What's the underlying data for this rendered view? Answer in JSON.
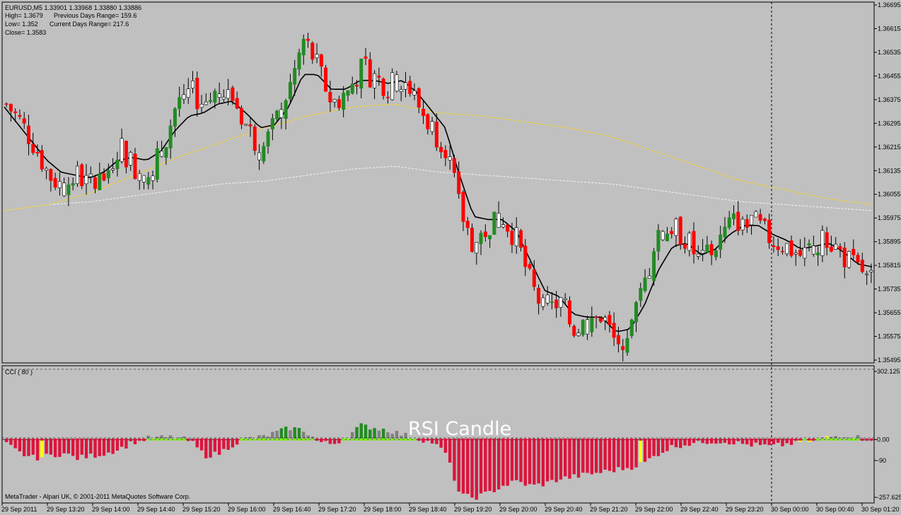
{
  "window": {
    "symbol_line": "EURUSD,M5  1.33901 1.33968 1.33880 1.33886",
    "high_line": "High= 1.3679",
    "prev_range": "Previous Days Range= 159.6",
    "low_line": "Low= 1.352",
    "curr_range": "Current Days Range= 217.6",
    "close_line": "Close= 1.3583"
  },
  "indicator": {
    "label": "CCI  ( 80 )",
    "watermark": "RSI Candle",
    "levels": [
      "302.125",
      "0.00",
      "-90",
      "-257.625"
    ]
  },
  "copyright": "MetaTrader - Alpari UK, © 2001-2011 MetaQuotes Software Corp.",
  "colors": {
    "background": "#c0c0c0",
    "bull_candle": "#228b22",
    "bear_candle": "#ff0000",
    "neutral_candle": "#ffffff",
    "ma_fast": "#000000",
    "ma_mid": "#ffd700",
    "ma_slow": "#f5f5f5",
    "cci_negative": "#dc143c",
    "cci_positive": "#228b22",
    "cci_neutral": "#808080",
    "cci_extreme": "#ffff00"
  },
  "chart_data": [
    {
      "type": "candlestick",
      "title": "",
      "y_ticks": [
        "1.36695",
        "1.36615",
        "1.36535",
        "1.36455",
        "1.36375",
        "1.36295",
        "1.36215",
        "1.36135",
        "1.36055",
        "1.35975",
        "1.35895",
        "1.35815",
        "1.35735",
        "1.35655",
        "1.35575",
        "1.35495"
      ],
      "ylim": [
        1.35495,
        1.36695
      ],
      "x_ticks": [
        "29 Sep 2011",
        "29 Sep 13:20",
        "29 Sep 14:00",
        "29 Sep 14:40",
        "29 Sep 15:20",
        "29 Sep 16:00",
        "29 Sep 16:40",
        "29 Sep 17:20",
        "29 Sep 18:00",
        "29 Sep 18:40",
        "29 Sep 19:20",
        "29 Sep 20:00",
        "29 Sep 20:40",
        "29 Sep 21:20",
        "29 Sep 22:00",
        "29 Sep 22:40",
        "29 Sep 23:20",
        "30 Sep 00:00",
        "30 Sep 00:40",
        "30 Sep 01:20"
      ],
      "price_path": [
        1.3636,
        1.363,
        1.3622,
        1.3612,
        1.3608,
        1.3612,
        1.3608,
        1.3612,
        1.3622,
        1.3615,
        1.3612,
        1.362,
        1.3636,
        1.364,
        1.3636,
        1.364,
        1.3638,
        1.3628,
        1.362,
        1.363,
        1.3642,
        1.3658,
        1.3648,
        1.3636,
        1.364,
        1.3648,
        1.3645,
        1.3642,
        1.3645,
        1.3636,
        1.3628,
        1.3622,
        1.36,
        1.3588,
        1.3595,
        1.3598,
        1.359,
        1.3575,
        1.3565,
        1.357,
        1.356,
        1.3562,
        1.3565,
        1.3555,
        1.356,
        1.3575,
        1.359,
        1.3595,
        1.359,
        1.3582,
        1.3588,
        1.3595,
        1.3598,
        1.3595,
        1.359,
        1.3588,
        1.3585,
        1.3588,
        1.359,
        1.3585,
        1.358,
        1.358
      ],
      "ma_fast_path": [
        1.3635,
        1.3629,
        1.3623,
        1.3617,
        1.3613,
        1.3612,
        1.3611,
        1.3613,
        1.3617,
        1.3618,
        1.3617,
        1.362,
        1.3627,
        1.3632,
        1.3633,
        1.3636,
        1.3637,
        1.3633,
        1.3628,
        1.3629,
        1.3635,
        1.3646,
        1.3646,
        1.3641,
        1.3641,
        1.3644,
        1.3644,
        1.3643,
        1.3644,
        1.364,
        1.3634,
        1.3628,
        1.3612,
        1.3598,
        1.3597,
        1.3597,
        1.3593,
        1.3583,
        1.3573,
        1.3571,
        1.3565,
        1.3564,
        1.3564,
        1.3559,
        1.356,
        1.3568,
        1.358,
        1.3588,
        1.3589,
        1.3585,
        1.3587,
        1.3592,
        1.3595,
        1.3595,
        1.3592,
        1.359,
        1.3587,
        1.3588,
        1.3589,
        1.3586,
        1.3582,
        1.3581
      ],
      "ma_mid_path": [
        1.36,
        1.3602,
        1.3606,
        1.3612,
        1.3618,
        1.3623,
        1.3628,
        1.3632,
        1.3635,
        1.3636,
        1.3633,
        1.3632,
        1.363,
        1.3628,
        1.3625,
        1.362,
        1.3615,
        1.361,
        1.3607,
        1.3604,
        1.3602
      ],
      "ma_slow_path": [
        1.36,
        1.3602,
        1.3603,
        1.3605,
        1.3607,
        1.3609,
        1.361,
        1.3612,
        1.3614,
        1.3615,
        1.3613,
        1.3612,
        1.3611,
        1.361,
        1.3609,
        1.3607,
        1.3605,
        1.3603,
        1.3602,
        1.3601,
        1.36
      ]
    },
    {
      "type": "bar",
      "title": "CCI  ( 80 )",
      "ylim": [
        -257.625,
        302.125
      ],
      "y_ticks": [
        "302.125",
        "0.00",
        "-90",
        "-257.625"
      ],
      "values": [
        -20,
        -60,
        -80,
        -70,
        -60,
        -80,
        -70,
        -60,
        -40,
        -10,
        5,
        8,
        10,
        -8,
        -70,
        -60,
        -20,
        5,
        10,
        30,
        50,
        40,
        -10,
        -20,
        10,
        60,
        50,
        40,
        20,
        5,
        -10,
        -60,
        -240,
        -250,
        -230,
        -200,
        -180,
        -200,
        -190,
        -170,
        -160,
        -150,
        -140,
        -130,
        -120,
        -100,
        -60,
        -30,
        -20,
        -10,
        -8,
        -10,
        -20,
        -25,
        -30,
        -20,
        -10,
        -5,
        10,
        20,
        10,
        5
      ],
      "colors_by_index": "red<0, green>40, gray otherwise, yellow at extremes"
    }
  ]
}
